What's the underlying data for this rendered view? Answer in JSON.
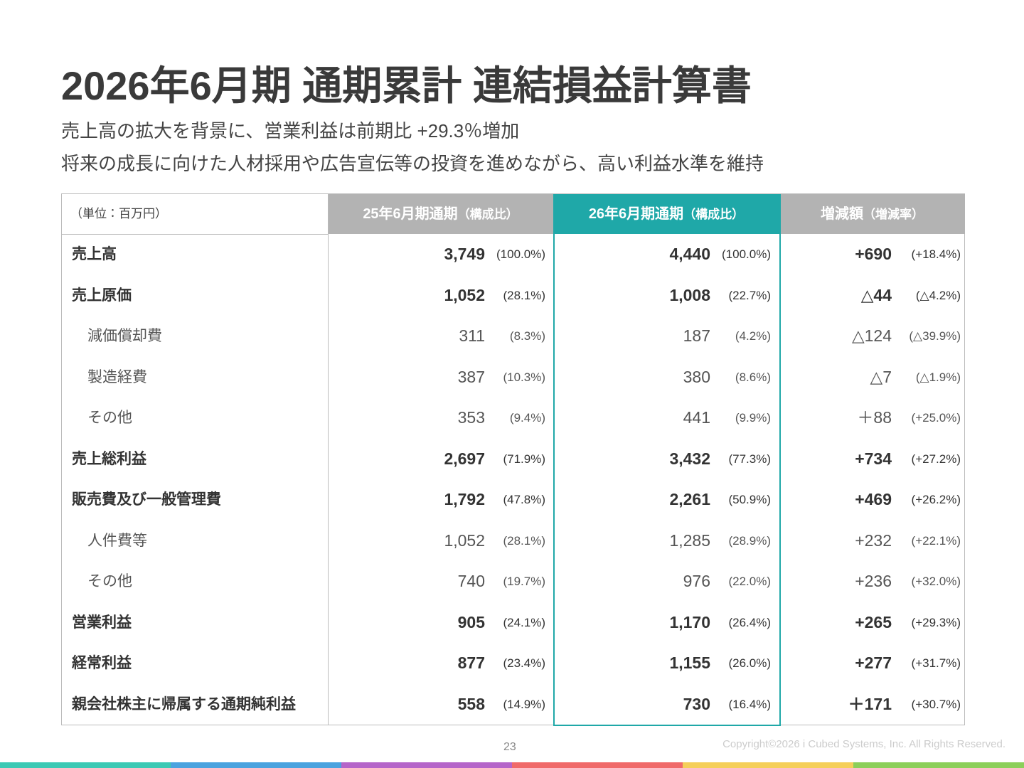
{
  "header": {
    "title": "2026年6月期 通期累計 連結損益計算書",
    "subtitle": [
      "売上高の拡大を背景に、営業利益は前期比 +29.3％増加",
      "将来の成長に向けた人材採用や広告宣伝等の投資を進めながら、高い利益水準を維持"
    ]
  },
  "table": {
    "unit": "（単位：百万円）",
    "columns": [
      {
        "label": "25年6月期通期",
        "sub": "（構成比）",
        "color": "#b3b3b3"
      },
      {
        "label": "26年6月期通期",
        "sub": "（構成比）",
        "color": "#1fa8a8"
      },
      {
        "label": "増減額",
        "sub": "（増減率）",
        "color": "#b3b3b3"
      }
    ],
    "rows": [
      {
        "emphasis": "bold",
        "cells": [
          "売上高",
          "3,749",
          "(100.0%)",
          "4,440",
          "(100.0%)",
          "+690",
          "(+18.4%)"
        ]
      },
      {
        "emphasis": "bold",
        "cells": [
          "売上原価",
          "1,052",
          "(28.1%)",
          "1,008",
          "(22.7%)",
          "△44",
          "(△4.2%)"
        ]
      },
      {
        "emphasis": "normal",
        "cells": [
          "減価償却費",
          "311",
          "(8.3%)",
          "187",
          "(4.2%)",
          "△124",
          "(△39.9%)"
        ]
      },
      {
        "emphasis": "normal",
        "cells": [
          "製造経費",
          "387",
          "(10.3%)",
          "380",
          "(8.6%)",
          "△7",
          "(△1.9%)"
        ]
      },
      {
        "emphasis": "normal",
        "cells": [
          "その他",
          "353",
          "(9.4%)",
          "441",
          "(9.9%)",
          "＋88",
          "(+25.0%)"
        ]
      },
      {
        "emphasis": "bold",
        "cells": [
          "売上総利益",
          "2,697",
          "(71.9%)",
          "3,432",
          "(77.3%)",
          "+734",
          "(+27.2%)"
        ]
      },
      {
        "emphasis": "bold",
        "cells": [
          "販売費及び一般管理費",
          "1,792",
          "(47.8%)",
          "2,261",
          "(50.9%)",
          "+469",
          "(+26.2%)"
        ]
      },
      {
        "emphasis": "normal",
        "cells": [
          "人件費等",
          "1,052",
          "(28.1%)",
          "1,285",
          "(28.9%)",
          "+232",
          "(+22.1%)"
        ]
      },
      {
        "emphasis": "normal",
        "cells": [
          "その他",
          "740",
          "(19.7%)",
          "976",
          "(22.0%)",
          "+236",
          "(+32.0%)"
        ]
      },
      {
        "emphasis": "bold",
        "cells": [
          "営業利益",
          "905",
          "(24.1%)",
          "1,170",
          "(26.4%)",
          "+265",
          "(+29.3%)"
        ]
      },
      {
        "emphasis": "bold",
        "cells": [
          "経常利益",
          "877",
          "(23.4%)",
          "1,155",
          "(26.0%)",
          "+277",
          "(+31.7%)"
        ]
      },
      {
        "emphasis": "bold",
        "cells": [
          "親会社株主に帰属する通期純利益",
          "558",
          "(14.9%)",
          "730",
          "(16.4%)",
          "＋171",
          "(+30.7%)"
        ]
      }
    ]
  },
  "footer": {
    "page": "23",
    "copyright": "Copyright©2026 i Cubed Systems, Inc. All Rights Reserved."
  }
}
